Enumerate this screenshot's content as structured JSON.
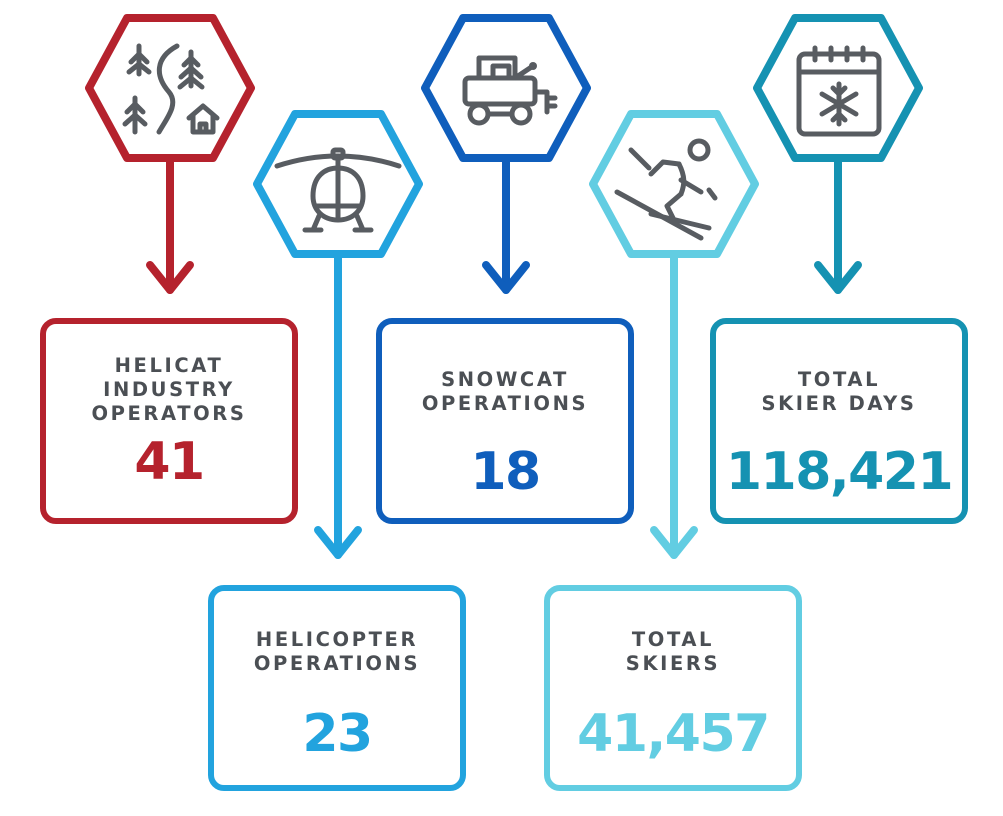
{
  "colors": {
    "red": "#b5222d",
    "light_blue": "#22a3de",
    "blue": "#0f5ebc",
    "cyan": "#62cde2",
    "teal": "#1592b2",
    "label_text": "#4b4f54",
    "icon": "#585c61"
  },
  "stats": [
    {
      "label": "HELICAT\nINDUSTRY\nOPERATORS",
      "value": "41",
      "icon": "forest-cabin-icon",
      "color": "red"
    },
    {
      "label": "HELICOPTER\nOPERATIONS",
      "value": "23",
      "icon": "helicopter-icon",
      "color": "light_blue"
    },
    {
      "label": "SNOWCAT\nOPERATIONS",
      "value": "18",
      "icon": "snowcat-icon",
      "color": "blue"
    },
    {
      "label": "TOTAL\nSKIERS",
      "value": "41,457",
      "icon": "skier-icon",
      "color": "cyan"
    },
    {
      "label": "TOTAL\nSKIER DAYS",
      "value": "118,421",
      "icon": "snow-calendar-icon",
      "color": "teal"
    }
  ]
}
